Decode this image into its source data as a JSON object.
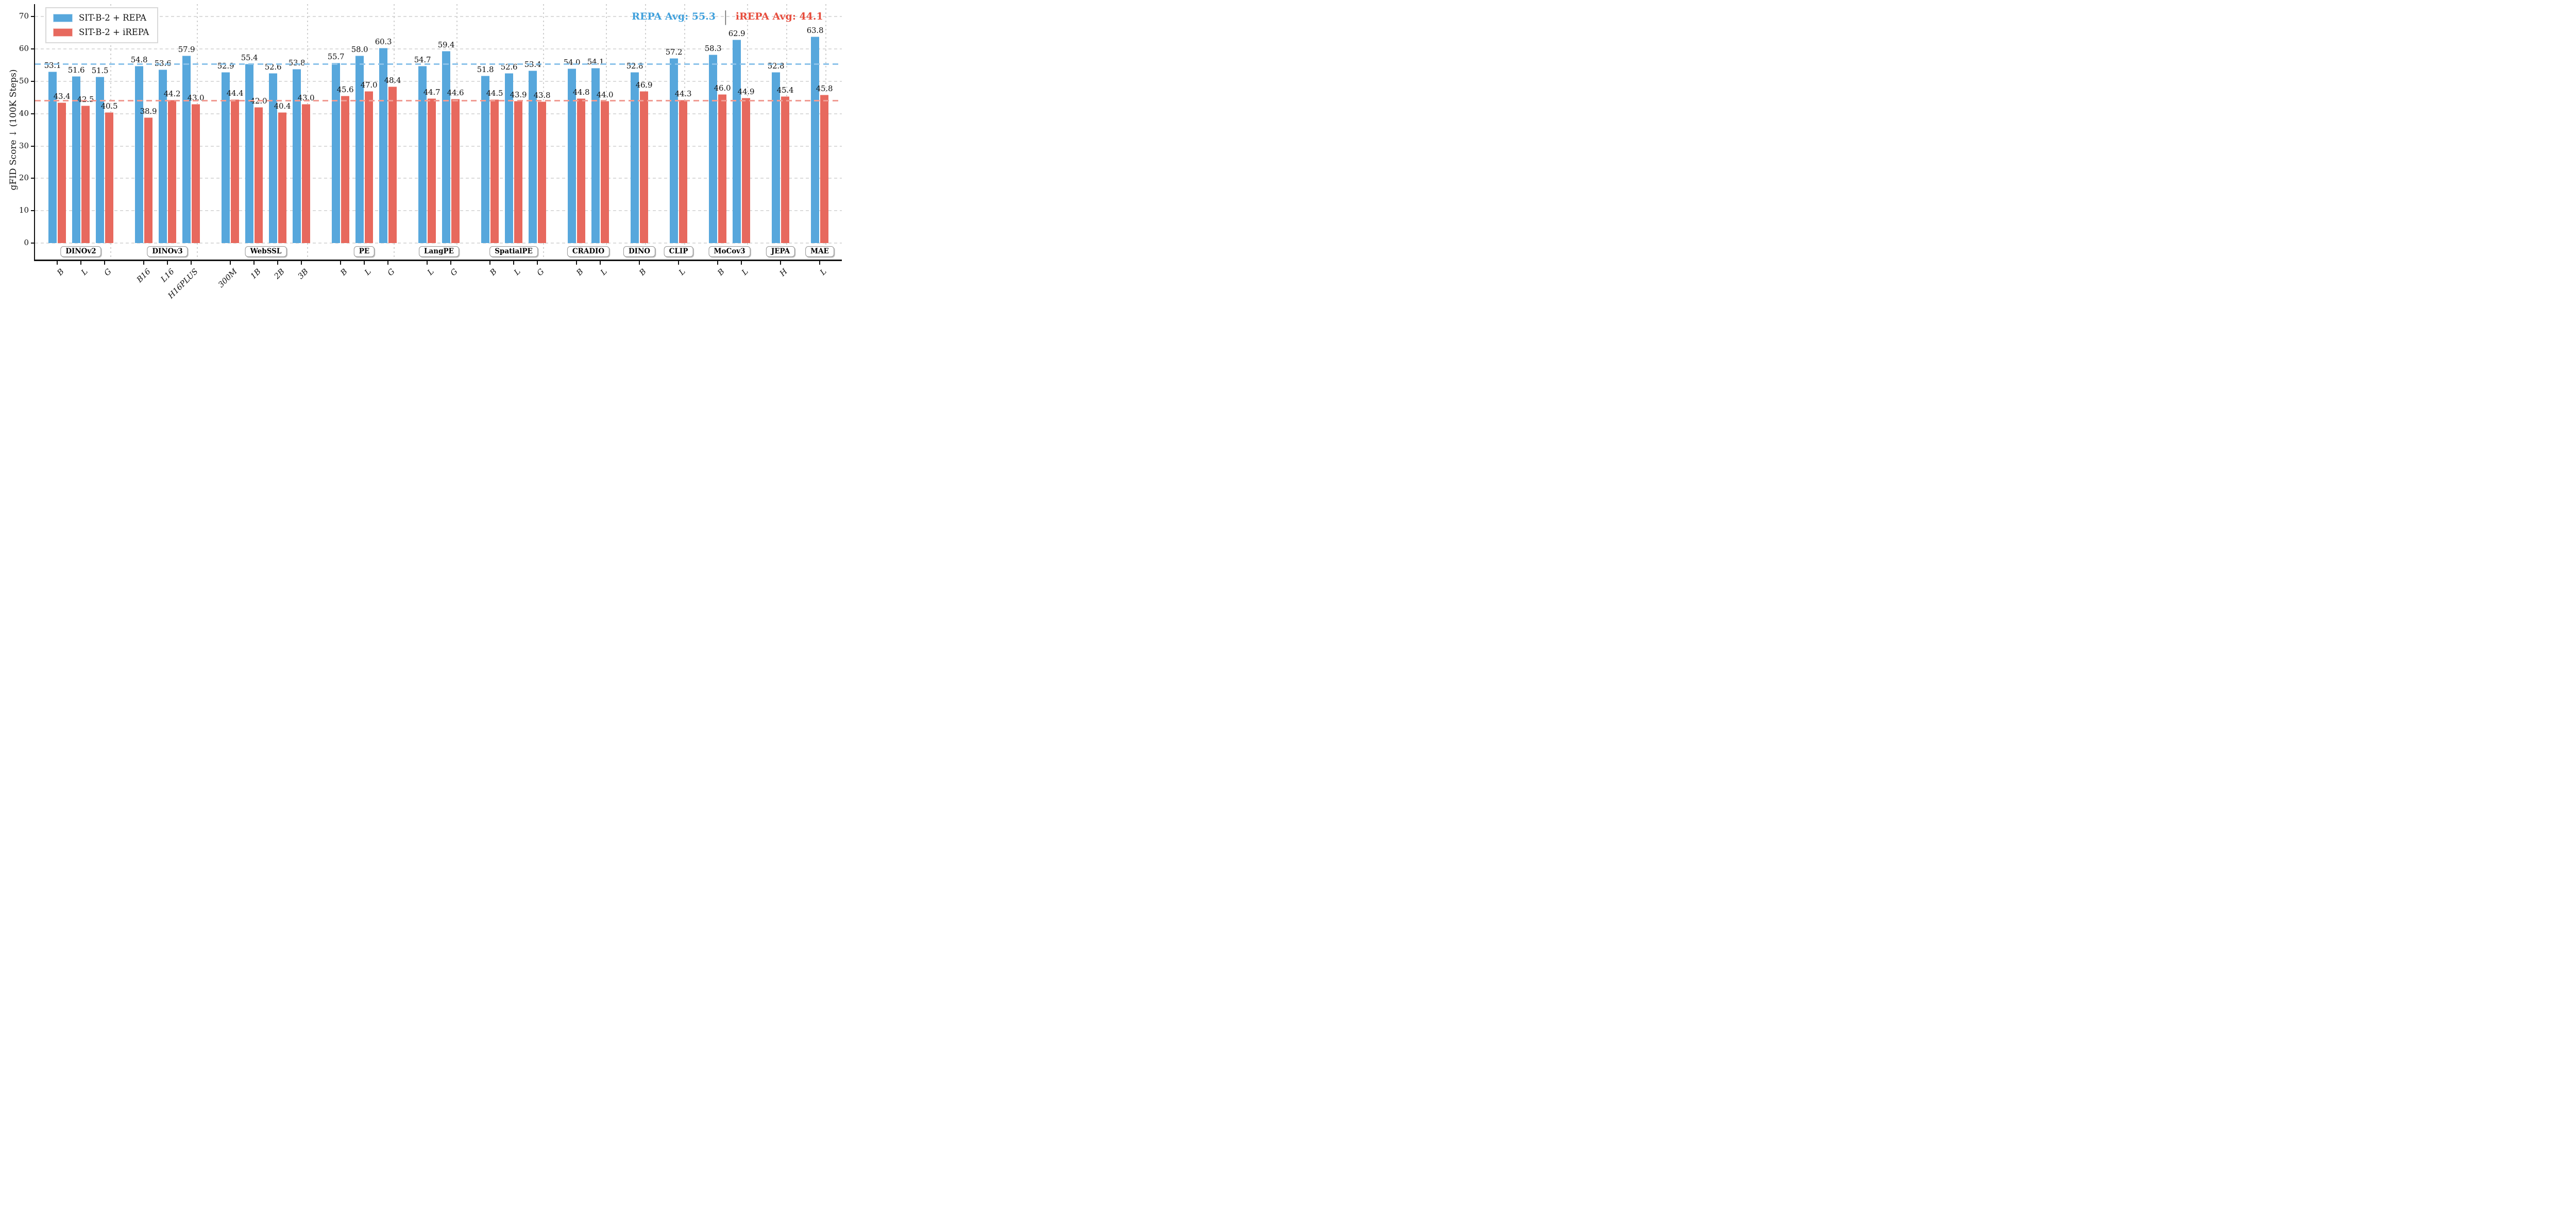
{
  "chart_data": {
    "type": "bar",
    "title": "",
    "xlabel": "",
    "ylabel": "gFID Score ↓ (100K Steps)",
    "ylim": [
      -5.1,
      73.9
    ],
    "yticks": [
      0,
      10,
      20,
      30,
      40,
      50,
      60,
      70
    ],
    "grid": "horizontal-dashed",
    "legend_position": "upper-left",
    "series": [
      {
        "name": "SIT-B-2 + REPA",
        "key": "repa",
        "color": "#57a7dc"
      },
      {
        "name": "SIT-B-2 + iREPA",
        "key": "irepa",
        "color": "#e7695e"
      }
    ],
    "averages": {
      "repa": {
        "value": 55.3,
        "label": "REPA Avg: 55.3",
        "line_color": "#8cc3ea",
        "text_color": "#3fa0dc"
      },
      "irepa": {
        "value": 44.1,
        "label": "iREPA Avg: 44.1",
        "line_color": "#f09c93",
        "text_color": "#e74c3c"
      },
      "divider": "|"
    },
    "groups": [
      {
        "name": "DINOv2",
        "items": [
          {
            "label": "B",
            "repa": 53.1,
            "irepa": 43.4
          },
          {
            "label": "L",
            "repa": 51.6,
            "irepa": 42.5
          },
          {
            "label": "G",
            "repa": 51.5,
            "irepa": 40.5
          }
        ]
      },
      {
        "name": "DINOv3",
        "items": [
          {
            "label": "B16",
            "repa": 54.8,
            "irepa": 38.9
          },
          {
            "label": "L16",
            "repa": 53.6,
            "irepa": 44.2
          },
          {
            "label": "H16PLUS",
            "repa": 57.9,
            "irepa": 43.0
          }
        ]
      },
      {
        "name": "WebSSL",
        "items": [
          {
            "label": "300M",
            "repa": 52.9,
            "irepa": 44.4
          },
          {
            "label": "1B",
            "repa": 55.4,
            "irepa": 42.0
          },
          {
            "label": "2B",
            "repa": 52.6,
            "irepa": 40.4
          },
          {
            "label": "3B",
            "repa": 53.8,
            "irepa": 43.0
          }
        ]
      },
      {
        "name": "PE",
        "items": [
          {
            "label": "B",
            "repa": 55.7,
            "irepa": 45.6
          },
          {
            "label": "L",
            "repa": 58.0,
            "irepa": 47.0
          },
          {
            "label": "G",
            "repa": 60.3,
            "irepa": 48.4
          }
        ]
      },
      {
        "name": "LangPE",
        "items": [
          {
            "label": "L",
            "repa": 54.7,
            "irepa": 44.7
          },
          {
            "label": "G",
            "repa": 59.4,
            "irepa": 44.6
          }
        ]
      },
      {
        "name": "SpatialPE",
        "items": [
          {
            "label": "B",
            "repa": 51.8,
            "irepa": 44.5
          },
          {
            "label": "L",
            "repa": 52.6,
            "irepa": 43.9
          },
          {
            "label": "G",
            "repa": 53.4,
            "irepa": 43.8
          }
        ]
      },
      {
        "name": "CRADIO",
        "items": [
          {
            "label": "B",
            "repa": 54.0,
            "irepa": 44.8
          },
          {
            "label": "L",
            "repa": 54.1,
            "irepa": 44.0
          }
        ]
      },
      {
        "name": "DINO",
        "items": [
          {
            "label": "B",
            "repa": 52.8,
            "irepa": 46.9
          }
        ]
      },
      {
        "name": "CLIP",
        "items": [
          {
            "label": "L",
            "repa": 57.2,
            "irepa": 44.3
          }
        ]
      },
      {
        "name": "MoCov3",
        "items": [
          {
            "label": "B",
            "repa": 58.3,
            "irepa": 46.0
          },
          {
            "label": "L",
            "repa": 62.9,
            "irepa": 44.9
          }
        ]
      },
      {
        "name": "JEPA",
        "items": [
          {
            "label": "H",
            "repa": 52.8,
            "irepa": 45.4
          }
        ]
      },
      {
        "name": "MAE",
        "items": [
          {
            "label": "L",
            "repa": 63.8,
            "irepa": 45.8
          }
        ]
      }
    ]
  }
}
